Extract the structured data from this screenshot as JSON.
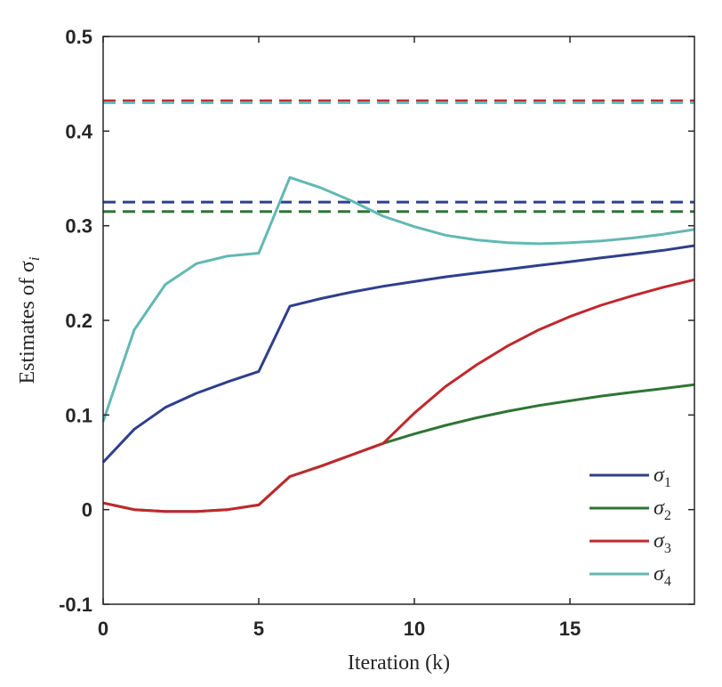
{
  "chart_data": {
    "type": "line",
    "title": "",
    "xlabel": "Iteration (k)",
    "ylabel": "Estimates of σ",
    "ylabel_subscript": "i",
    "xlim": [
      0,
      19
    ],
    "ylim": [
      -0.1,
      0.5
    ],
    "xticks": [
      0,
      5,
      10,
      15
    ],
    "xtick_labels": [
      "0",
      "5",
      "10",
      "15"
    ],
    "yticks": [
      -0.1,
      0,
      0.1,
      0.2,
      0.3,
      0.4,
      0.5
    ],
    "ytick_labels": [
      "-0.1",
      "0",
      "0.1",
      "0.2",
      "0.3",
      "0.4",
      "0.5"
    ],
    "grid": false,
    "legend_position": "bottom-right",
    "x": [
      0,
      1,
      2,
      3,
      4,
      5,
      6,
      7,
      8,
      9,
      10,
      11,
      12,
      13,
      14,
      15,
      16,
      17,
      18,
      19
    ],
    "series": [
      {
        "name": "σ1",
        "symbol": "σ",
        "subscript": "1",
        "color": "#2f3f8c",
        "values": [
          0.05,
          0.085,
          0.108,
          0.123,
          0.135,
          0.146,
          0.215,
          0.223,
          0.23,
          0.236,
          0.241,
          0.246,
          0.25,
          0.254,
          0.258,
          0.262,
          0.266,
          0.27,
          0.274,
          0.279
        ],
        "reference": 0.325
      },
      {
        "name": "σ2",
        "symbol": "σ",
        "subscript": "2",
        "color": "#2e7534",
        "values": [
          0.007,
          0.0,
          -0.002,
          -0.002,
          0.0,
          0.005,
          0.035,
          0.046,
          0.058,
          0.07,
          0.08,
          0.089,
          0.097,
          0.104,
          0.11,
          0.115,
          0.12,
          0.124,
          0.128,
          0.132
        ],
        "reference": 0.315
      },
      {
        "name": "σ3",
        "symbol": "σ",
        "subscript": "3",
        "color": "#c0282d",
        "values": [
          0.007,
          0.0,
          -0.002,
          -0.002,
          0.0,
          0.005,
          0.035,
          0.046,
          0.058,
          0.07,
          0.102,
          0.13,
          0.153,
          0.173,
          0.19,
          0.204,
          0.216,
          0.226,
          0.235,
          0.243
        ],
        "reference": 0.432
      },
      {
        "name": "σ4",
        "symbol": "σ",
        "subscript": "4",
        "color": "#62b8b4",
        "values": [
          0.093,
          0.19,
          0.238,
          0.26,
          0.268,
          0.271,
          0.351,
          0.34,
          0.326,
          0.31,
          0.299,
          0.29,
          0.285,
          0.282,
          0.281,
          0.282,
          0.284,
          0.287,
          0.291,
          0.296
        ],
        "reference": 0.43
      }
    ]
  }
}
